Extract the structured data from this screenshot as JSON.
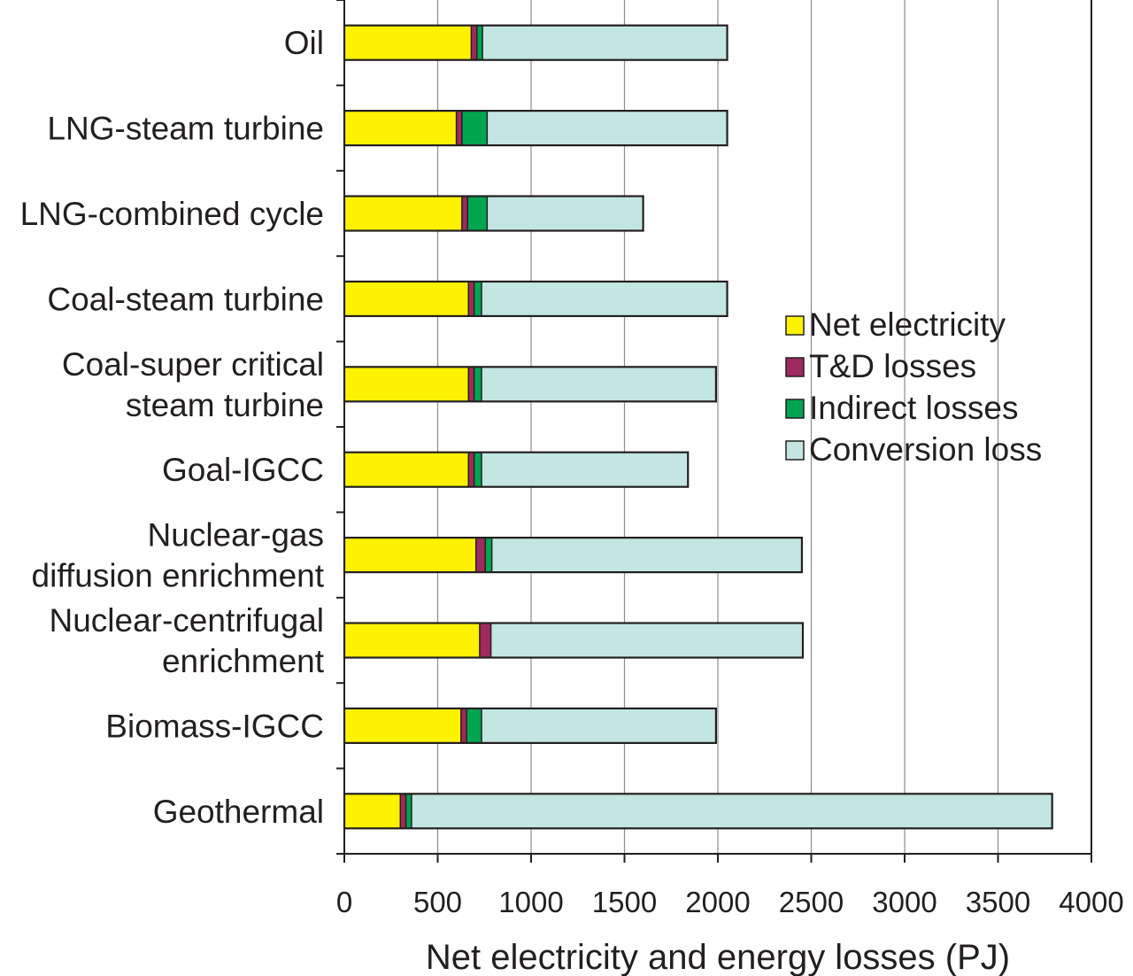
{
  "chart_data": {
    "type": "bar",
    "orientation": "horizontal",
    "stacked": true,
    "title": "",
    "xlabel": "Net electricity and energy losses (PJ)",
    "ylabel": "",
    "xlim": [
      0,
      4000
    ],
    "xticks": [
      "0",
      "500",
      "1000",
      "1500",
      "2000",
      "2500",
      "3000",
      "3500",
      "4000"
    ],
    "grid": "vertical",
    "legend_position": "right",
    "categories": [
      [
        "Oil"
      ],
      [
        "LNG-steam turbine"
      ],
      [
        "LNG-combined cycle"
      ],
      [
        "Coal-steam turbine"
      ],
      [
        "Coal-super critical",
        "steam turbine"
      ],
      [
        "Goal-IGCC"
      ],
      [
        "Nuclear-gas",
        "diffusion enrichment"
      ],
      [
        "Nuclear-centrifugal",
        "enrichment"
      ],
      [
        "Biomass-IGCC"
      ],
      [
        "Geothermal"
      ]
    ],
    "series": [
      {
        "name": "Net electricity",
        "color": "#fff200",
        "values": [
          680,
          600,
          630,
          665,
          665,
          665,
          705,
          725,
          625,
          300
        ]
      },
      {
        "name": "T&D losses",
        "color": "#9e2a5f",
        "values": [
          30,
          30,
          30,
          30,
          30,
          30,
          50,
          60,
          30,
          30
        ]
      },
      {
        "name": "Indirect losses",
        "color": "#00a54f",
        "values": [
          30,
          135,
          105,
          40,
          40,
          40,
          35,
          0,
          80,
          30
        ]
      },
      {
        "name": "Conversion loss",
        "color": "#c3e6e2",
        "values": [
          1310,
          1285,
          835,
          1315,
          1255,
          1105,
          1660,
          1670,
          1255,
          3430
        ]
      }
    ]
  }
}
